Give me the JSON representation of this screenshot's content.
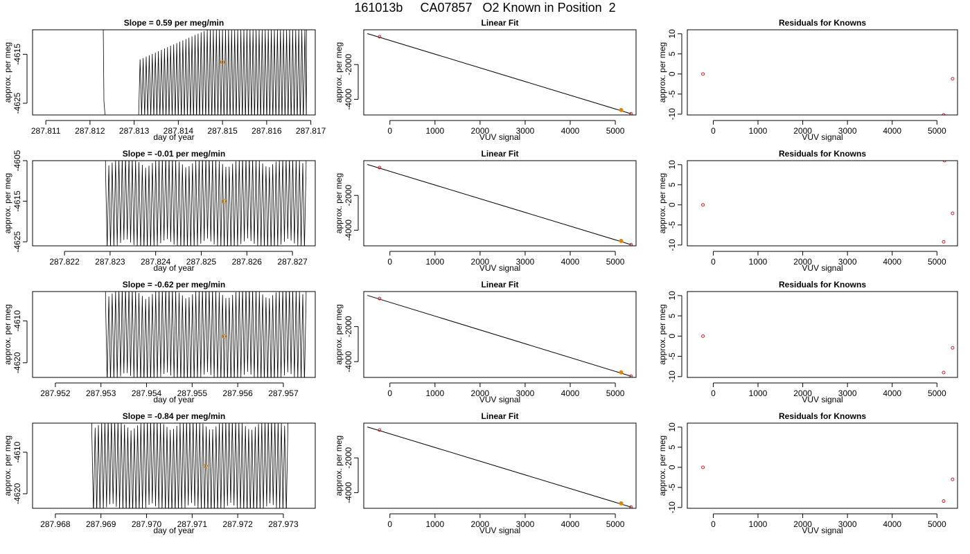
{
  "figure": {
    "title": "161013b     CA07857   O2 Known in Position  2"
  },
  "colors": {
    "trace": "#000000",
    "highlight": "#e0850a",
    "point": "#d0202a"
  },
  "chart_data": [
    {
      "type": "line",
      "panel": "timeseries",
      "title": "Slope =  0.59  per meg/min",
      "xlabel": "day of year",
      "ylabel": "approx. per meg",
      "xlim": [
        287.8107,
        287.8171
      ],
      "ylim": [
        -4627.4,
        -4610.0
      ],
      "xticks": [
        "287.811",
        "287.812",
        "287.813",
        "287.814",
        "287.815",
        "287.816",
        "287.817"
      ],
      "yticks": [
        "-4615",
        "-4625"
      ],
      "series": [
        {
          "name": "",
          "start": 287.8123,
          "end": 287.8169,
          "amplitude_range": [
            -4629,
            -4610
          ]
        }
      ],
      "highlight_point": {
        "x": 287.815,
        "y": -4616.6
      }
    },
    {
      "type": "scatter",
      "panel": "linear_fit",
      "title": "Linear Fit",
      "xlabel": "VUV signal",
      "ylabel": "approx. per meg",
      "xlim": [
        -580,
        5460
      ],
      "ylim": [
        -4900,
        0
      ],
      "xticks": [
        "0",
        "1000",
        "2000",
        "3000",
        "4000",
        "5000"
      ],
      "yticks": [
        "-2000",
        "-4000"
      ],
      "points": [
        [
          -230,
          -400
        ],
        [
          5130,
          -4615
        ],
        [
          5350,
          -4830
        ]
      ],
      "highlight_point": [
        5130,
        -4615
      ],
      "fit_line": [
        [
          -500,
          -220
        ],
        [
          5360,
          -4840
        ]
      ]
    },
    {
      "type": "scatter",
      "panel": "residuals",
      "title": "Residuals for Knowns",
      "xlabel": "VUV signal",
      "ylabel": "approx. per meg",
      "xlim": [
        -580,
        5460
      ],
      "ylim": [
        -10.2,
        11
      ],
      "xticks": [
        "0",
        "1000",
        "2000",
        "3000",
        "4000",
        "5000"
      ],
      "yticks": [
        "10",
        "5",
        "0",
        "-5",
        "-10"
      ],
      "points": [
        [
          -230,
          0
        ],
        [
          5150,
          -10.2
        ],
        [
          5350,
          -1.2
        ]
      ]
    },
    {
      "type": "line",
      "panel": "timeseries",
      "title": "Slope =  -0.01  per meg/min",
      "xlabel": "day of year",
      "ylabel": "approx. per meg",
      "xlim": [
        287.8213,
        287.8275
      ],
      "ylim": [
        -4626,
        -4605
      ],
      "xticks": [
        "287.822",
        "287.823",
        "287.824",
        "287.825",
        "287.826",
        "287.827"
      ],
      "yticks": [
        "-4605",
        "-4615",
        "-4625"
      ],
      "series": [
        {
          "name": "",
          "start": 287.8229,
          "end": 287.8273,
          "amplitude_range": [
            -4627,
            -4604
          ]
        }
      ],
      "highlight_point": {
        "x": 287.8255,
        "y": -4615
      }
    },
    {
      "type": "scatter",
      "panel": "linear_fit",
      "title": "Linear Fit",
      "xlabel": "VUV signal",
      "ylabel": "approx. per meg",
      "xlim": [
        -580,
        5460
      ],
      "ylim": [
        -4900,
        0
      ],
      "xticks": [
        "0",
        "1000",
        "2000",
        "3000",
        "4000",
        "5000"
      ],
      "yticks": [
        "-2000",
        "-4000"
      ],
      "points": [
        [
          -230,
          -400
        ],
        [
          5130,
          -4615
        ],
        [
          5350,
          -4830
        ]
      ],
      "highlight_point": [
        5130,
        -4615
      ],
      "fit_line": [
        [
          -500,
          -220
        ],
        [
          5360,
          -4840
        ]
      ]
    },
    {
      "type": "scatter",
      "panel": "residuals",
      "title": "Residuals for Knowns",
      "xlabel": "VUV signal",
      "ylabel": "approx. per meg",
      "xlim": [
        -580,
        5460
      ],
      "ylim": [
        -10.2,
        11
      ],
      "xticks": [
        "0",
        "1000",
        "2000",
        "3000",
        "4000",
        "5000"
      ],
      "yticks": [
        "10",
        "5",
        "0",
        "-5",
        "-10"
      ],
      "points": [
        [
          -230,
          0
        ],
        [
          5150,
          -9.2
        ],
        [
          5350,
          -2.1
        ],
        [
          5170,
          11
        ]
      ]
    },
    {
      "type": "line",
      "panel": "timeseries",
      "title": "Slope =  -0.62  per meg/min",
      "xlabel": "day of year",
      "ylabel": "approx. per meg",
      "xlim": [
        287.9515,
        287.9577
      ],
      "ylim": [
        -4623.5,
        -4603
      ],
      "xticks": [
        "287.952",
        "287.953",
        "287.954",
        "287.955",
        "287.956",
        "287.957"
      ],
      "yticks": [
        "-4610",
        "-4620"
      ],
      "series": [
        {
          "name": "",
          "start": 287.9531,
          "end": 287.9575,
          "amplitude_range": [
            -4625,
            -4602
          ]
        }
      ],
      "highlight_point": {
        "x": 287.9557,
        "y": -4613.7
      }
    },
    {
      "type": "scatter",
      "panel": "linear_fit",
      "title": "Linear Fit",
      "xlabel": "VUV signal",
      "ylabel": "approx. per meg",
      "xlim": [
        -580,
        5460
      ],
      "ylim": [
        -4900,
        0
      ],
      "xticks": [
        "0",
        "1000",
        "2000",
        "3000",
        "4000",
        "5000"
      ],
      "yticks": [
        "-2000",
        "-4000"
      ],
      "points": [
        [
          -230,
          -400
        ],
        [
          5130,
          -4615
        ],
        [
          5350,
          -4830
        ]
      ],
      "highlight_point": [
        5130,
        -4615
      ],
      "fit_line": [
        [
          -500,
          -220
        ],
        [
          5360,
          -4840
        ]
      ]
    },
    {
      "type": "scatter",
      "panel": "residuals",
      "title": "Residuals for Knowns",
      "xlabel": "VUV signal",
      "ylabel": "approx. per meg",
      "xlim": [
        -580,
        5460
      ],
      "ylim": [
        -10.2,
        11
      ],
      "xticks": [
        "0",
        "1000",
        "2000",
        "3000",
        "4000",
        "5000"
      ],
      "yticks": [
        "10",
        "5",
        "0",
        "-5",
        "-10"
      ],
      "points": [
        [
          -230,
          0
        ],
        [
          5150,
          -9.0
        ],
        [
          5350,
          -2.9
        ]
      ]
    },
    {
      "type": "line",
      "panel": "timeseries",
      "title": "Slope =  -0.84  per meg/min",
      "xlabel": "day of year",
      "ylabel": "approx. per meg",
      "xlim": [
        287.9675,
        287.9737
      ],
      "ylim": [
        -4623.5,
        -4603
      ],
      "xticks": [
        "287.968",
        "287.969",
        "287.970",
        "287.971",
        "287.972",
        "287.973"
      ],
      "yticks": [
        "-4610",
        "-4620"
      ],
      "series": [
        {
          "name": "",
          "start": 287.9688,
          "end": 287.9731,
          "amplitude_range": [
            -4625,
            -4602
          ]
        }
      ],
      "highlight_point": {
        "x": 287.9713,
        "y": -4613.3
      }
    },
    {
      "type": "scatter",
      "panel": "linear_fit",
      "title": "Linear Fit",
      "xlabel": "VUV signal",
      "ylabel": "approx. per meg",
      "xlim": [
        -580,
        5460
      ],
      "ylim": [
        -4900,
        0
      ],
      "xticks": [
        "0",
        "1000",
        "2000",
        "3000",
        "4000",
        "5000"
      ],
      "yticks": [
        "-2000",
        "-4000"
      ],
      "points": [
        [
          -230,
          -400
        ],
        [
          5130,
          -4615
        ],
        [
          5350,
          -4830
        ]
      ],
      "highlight_point": [
        5130,
        -4615
      ],
      "fit_line": [
        [
          -500,
          -220
        ],
        [
          5360,
          -4840
        ]
      ]
    },
    {
      "type": "scatter",
      "panel": "residuals",
      "title": "Residuals for Knowns",
      "xlabel": "VUV signal",
      "ylabel": "approx. per meg",
      "xlim": [
        -580,
        5460
      ],
      "ylim": [
        -10.2,
        11
      ],
      "xticks": [
        "0",
        "1000",
        "2000",
        "3000",
        "4000",
        "5000"
      ],
      "yticks": [
        "10",
        "5",
        "0",
        "-5",
        "-10"
      ],
      "points": [
        [
          -230,
          0
        ],
        [
          5150,
          -8.4
        ],
        [
          5350,
          -3.0
        ]
      ]
    }
  ]
}
